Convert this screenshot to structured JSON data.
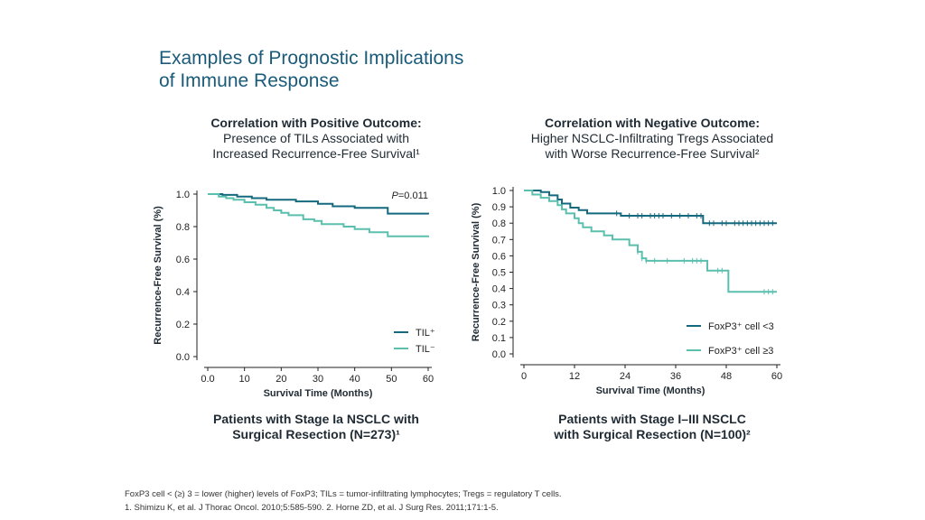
{
  "slide": {
    "title_line1": "Examples of Prognostic Implications",
    "title_line2": "of Immune Response"
  },
  "colors": {
    "dark": "#14697f",
    "light": "#5bbfae",
    "text": "#1f2a33",
    "title": "#1a5b7a"
  },
  "left_panel": {
    "heading_bold": "Correlation with Positive Outcome:",
    "heading_line2": "Presence of TILs Associated with",
    "heading_line3": "Increased Recurrence-Free Survival¹",
    "footer_line1": "Patients with Stage Ia NSCLC with",
    "footer_line2": "Surgical Resection (N=273)¹"
  },
  "right_panel": {
    "heading_bold": "Correlation with Negative Outcome:",
    "heading_line2": "Higher NSCLC-Infiltrating Tregs Associated",
    "heading_line3": "with Worse Recurrence-Free Survival²",
    "footer_line1": "Patients with Stage I–III NSCLC",
    "footer_line2": "with Surgical Resection (N=100)²"
  },
  "footnotes": {
    "line1": "FoxP3 cell < (≥) 3 = lower (higher) levels of FoxP3; TILs = tumor-infiltrating lymphocytes; Tregs = regulatory T cells.",
    "line2": "1. Shimizu K, et al. J Thorac Oncol. 2010;5:585-590. 2. Horne ZD, et al. J Surg Res. 2011;171:1-5."
  },
  "chart_data": [
    {
      "type": "line",
      "step": true,
      "xlabel": "Survival Time (Months)",
      "ylabel": "Recurrence-Free Survival (%)",
      "xlim": [
        0,
        60
      ],
      "ylim": [
        0,
        1.0
      ],
      "xticks": [
        "0.0",
        "10",
        "20",
        "30",
        "40",
        "50",
        "60"
      ],
      "xtick_values": [
        0,
        10,
        20,
        30,
        40,
        50,
        60
      ],
      "yticks": [
        "0.0",
        "0.2",
        "0.4",
        "0.6",
        "0.8",
        "1.0"
      ],
      "ytick_values": [
        0,
        0.2,
        0.4,
        0.6,
        0.8,
        1.0
      ],
      "annotation": "P=0.011",
      "annotation_prefix": "P",
      "annotation_suffix": "=0.011",
      "legend_position": "bottom-right",
      "series": [
        {
          "name": "TIL⁺",
          "color": "#14697f",
          "points": [
            [
              0,
              1.0
            ],
            [
              4,
              0.995
            ],
            [
              8,
              0.985
            ],
            [
              12,
              0.975
            ],
            [
              16,
              0.965
            ],
            [
              24,
              0.955
            ],
            [
              30,
              0.94
            ],
            [
              34,
              0.925
            ],
            [
              40,
              0.915
            ],
            [
              48,
              0.915
            ],
            [
              49,
              0.88
            ],
            [
              60,
              0.875
            ]
          ]
        },
        {
          "name": "TIL⁻",
          "color": "#5bbfae",
          "points": [
            [
              0,
              1.0
            ],
            [
              3,
              0.985
            ],
            [
              5,
              0.975
            ],
            [
              7,
              0.965
            ],
            [
              10,
              0.95
            ],
            [
              13,
              0.935
            ],
            [
              16,
              0.915
            ],
            [
              18,
              0.9
            ],
            [
              20,
              0.885
            ],
            [
              22,
              0.87
            ],
            [
              26,
              0.845
            ],
            [
              29,
              0.835
            ],
            [
              31,
              0.815
            ],
            [
              37,
              0.8
            ],
            [
              40,
              0.785
            ],
            [
              44,
              0.765
            ],
            [
              48,
              0.765
            ],
            [
              49,
              0.74
            ],
            [
              60,
              0.735
            ]
          ]
        }
      ]
    },
    {
      "type": "line",
      "step": true,
      "xlabel": "Survival Time (Months)",
      "ylabel": "Recurrence-Free Survival (%)",
      "xlim": [
        0,
        60
      ],
      "ylim": [
        0,
        1.0
      ],
      "xticks": [
        "0",
        "12",
        "24",
        "36",
        "48",
        "60"
      ],
      "xtick_values": [
        0,
        12,
        24,
        36,
        48,
        60
      ],
      "yticks": [
        "0.0",
        "0.1",
        "0.2",
        "0.3",
        "0.4",
        "0.5",
        "0.6",
        "0.7",
        "0.8",
        "0.9",
        "1.0"
      ],
      "ytick_values": [
        0,
        0.1,
        0.2,
        0.3,
        0.4,
        0.5,
        0.6,
        0.7,
        0.8,
        0.9,
        1.0
      ],
      "legend_position": "bottom-right",
      "series": [
        {
          "name": "FoxP3⁺ cell <3",
          "color": "#14697f",
          "points": [
            [
              0,
              1.0
            ],
            [
              4,
              0.99
            ],
            [
              6,
              0.97
            ],
            [
              8,
              0.945
            ],
            [
              9,
              0.92
            ],
            [
              11,
              0.895
            ],
            [
              13,
              0.88
            ],
            [
              15,
              0.86
            ],
            [
              22,
              0.86
            ],
            [
              23,
              0.845
            ],
            [
              42,
              0.845
            ],
            [
              42.5,
              0.8
            ],
            [
              60,
              0.8
            ]
          ],
          "censor_x": [
            22,
            25,
            27,
            28,
            30,
            31,
            32,
            33,
            35,
            37,
            39,
            41,
            42,
            44,
            45,
            47,
            48,
            50,
            51,
            52,
            53,
            54,
            55,
            56,
            57,
            58,
            59
          ]
        },
        {
          "name": "FoxP3⁺ cell ≥3",
          "color": "#5bbfae",
          "points": [
            [
              0,
              1.0
            ],
            [
              2,
              0.975
            ],
            [
              4,
              0.955
            ],
            [
              6,
              0.935
            ],
            [
              8,
              0.91
            ],
            [
              9,
              0.885
            ],
            [
              10,
              0.86
            ],
            [
              12,
              0.83
            ],
            [
              13,
              0.8
            ],
            [
              14,
              0.775
            ],
            [
              16,
              0.75
            ],
            [
              19,
              0.725
            ],
            [
              21,
              0.7
            ],
            [
              25,
              0.665
            ],
            [
              27,
              0.625
            ],
            [
              28,
              0.585
            ],
            [
              29,
              0.57
            ],
            [
              43,
              0.57
            ],
            [
              43.5,
              0.51
            ],
            [
              48,
              0.51
            ],
            [
              48.5,
              0.38
            ],
            [
              60,
              0.38
            ]
          ],
          "censor_x": [
            27,
            28,
            29,
            31,
            34,
            38,
            40,
            41,
            42,
            46,
            47,
            57,
            58,
            59
          ]
        }
      ]
    }
  ]
}
